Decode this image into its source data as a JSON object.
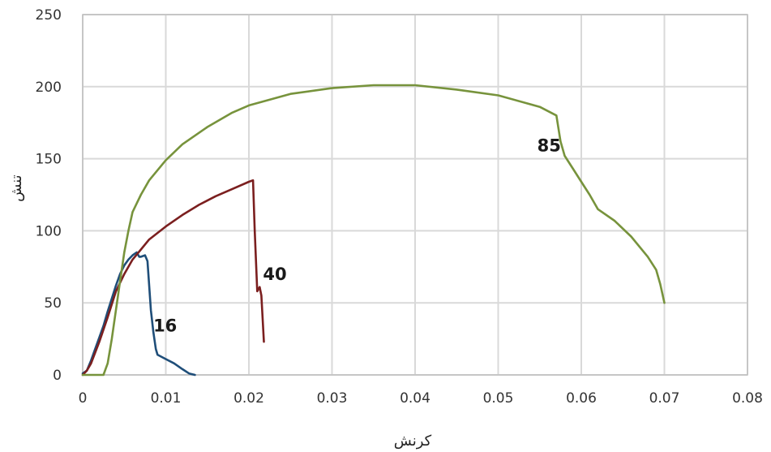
{
  "chart_data": {
    "type": "line",
    "xlabel": "کرنش",
    "ylabel": "تنش",
    "xlim": [
      0,
      0.08
    ],
    "ylim": [
      0,
      250
    ],
    "x_ticks": [
      "0",
      "0.01",
      "0.02",
      "0.03",
      "0.04",
      "0.05",
      "0.06",
      "0.07",
      "0.08"
    ],
    "y_ticks": [
      "0",
      "50",
      "100",
      "150",
      "200",
      "250"
    ],
    "grid": true,
    "legend": "none",
    "series": [
      {
        "name": "16",
        "color": "#1f4e79",
        "points": [
          [
            0.0,
            1
          ],
          [
            0.0005,
            3
          ],
          [
            0.001,
            10
          ],
          [
            0.0015,
            18
          ],
          [
            0.002,
            26
          ],
          [
            0.0025,
            34
          ],
          [
            0.003,
            44
          ],
          [
            0.0035,
            53
          ],
          [
            0.004,
            62
          ],
          [
            0.0045,
            70
          ],
          [
            0.005,
            76
          ],
          [
            0.0055,
            80
          ],
          [
            0.006,
            83
          ],
          [
            0.0065,
            85
          ],
          [
            0.0068,
            82
          ],
          [
            0.007,
            82
          ],
          [
            0.0075,
            83
          ],
          [
            0.0078,
            79
          ],
          [
            0.008,
            62
          ],
          [
            0.0082,
            45
          ],
          [
            0.0085,
            30
          ],
          [
            0.0088,
            18
          ],
          [
            0.009,
            14
          ],
          [
            0.01,
            11
          ],
          [
            0.011,
            8
          ],
          [
            0.012,
            4
          ],
          [
            0.0128,
            1
          ],
          [
            0.0135,
            0
          ]
        ]
      },
      {
        "name": "40",
        "color": "#7b1f1f",
        "points": [
          [
            0.0,
            0
          ],
          [
            0.0005,
            3
          ],
          [
            0.001,
            8
          ],
          [
            0.002,
            23
          ],
          [
            0.003,
            40
          ],
          [
            0.004,
            58
          ],
          [
            0.005,
            70
          ],
          [
            0.006,
            80
          ],
          [
            0.007,
            87
          ],
          [
            0.008,
            94
          ],
          [
            0.01,
            103
          ],
          [
            0.012,
            111
          ],
          [
            0.014,
            118
          ],
          [
            0.016,
            124
          ],
          [
            0.018,
            129
          ],
          [
            0.02,
            134
          ],
          [
            0.0205,
            135
          ],
          [
            0.0207,
            100
          ],
          [
            0.021,
            58
          ],
          [
            0.0213,
            61
          ],
          [
            0.0215,
            55
          ],
          [
            0.0218,
            23
          ]
        ]
      },
      {
        "name": "85",
        "color": "#77933c",
        "points": [
          [
            0.0,
            0
          ],
          [
            0.0025,
            0
          ],
          [
            0.003,
            8
          ],
          [
            0.0035,
            25
          ],
          [
            0.004,
            45
          ],
          [
            0.0045,
            65
          ],
          [
            0.005,
            85
          ],
          [
            0.0055,
            100
          ],
          [
            0.006,
            113
          ],
          [
            0.007,
            125
          ],
          [
            0.008,
            135
          ],
          [
            0.01,
            149
          ],
          [
            0.012,
            160
          ],
          [
            0.015,
            172
          ],
          [
            0.018,
            182
          ],
          [
            0.02,
            187
          ],
          [
            0.025,
            195
          ],
          [
            0.03,
            199
          ],
          [
            0.035,
            201
          ],
          [
            0.04,
            201
          ],
          [
            0.045,
            198
          ],
          [
            0.05,
            194
          ],
          [
            0.055,
            186
          ],
          [
            0.057,
            180
          ],
          [
            0.0575,
            162
          ],
          [
            0.058,
            152
          ],
          [
            0.059,
            143
          ],
          [
            0.06,
            134
          ],
          [
            0.061,
            125
          ],
          [
            0.062,
            115
          ],
          [
            0.064,
            107
          ],
          [
            0.066,
            96
          ],
          [
            0.068,
            82
          ],
          [
            0.069,
            73
          ],
          [
            0.0695,
            63
          ],
          [
            0.07,
            50
          ]
        ]
      }
    ]
  }
}
